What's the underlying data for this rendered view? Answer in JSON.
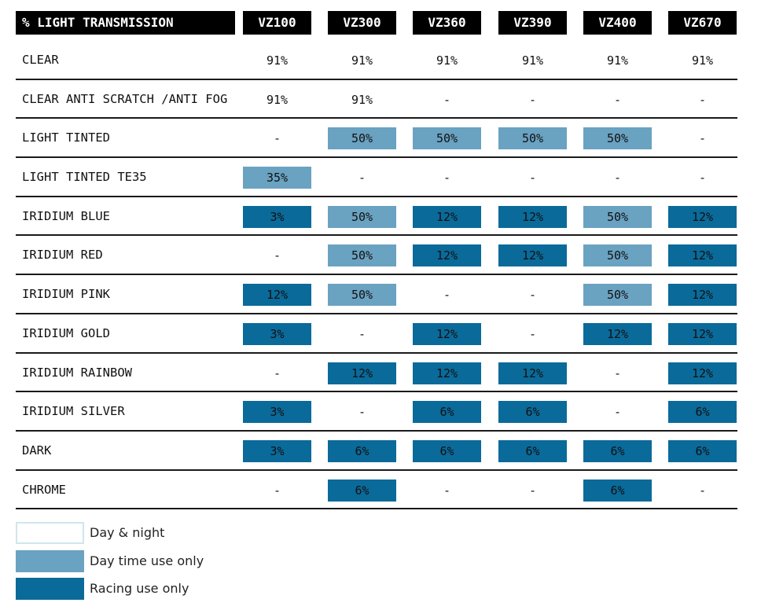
{
  "table": {
    "header_label": "% LIGHT TRANSMISSION",
    "columns": [
      "VZ100",
      "VZ300",
      "VZ360",
      "VZ390",
      "VZ400",
      "VZ670"
    ],
    "rows": [
      {
        "label": "CLEAR",
        "cells": [
          {
            "value": "91%",
            "use": "day-night"
          },
          {
            "value": "91%",
            "use": "day-night"
          },
          {
            "value": "91%",
            "use": "day-night"
          },
          {
            "value": "91%",
            "use": "day-night"
          },
          {
            "value": "91%",
            "use": "day-night"
          },
          {
            "value": "91%",
            "use": "day-night"
          }
        ]
      },
      {
        "label": "CLEAR ANTI SCRATCH /ANTI FOG",
        "cells": [
          {
            "value": "91%",
            "use": "day-night"
          },
          {
            "value": "91%",
            "use": "day-night"
          },
          {
            "value": "-",
            "use": "none"
          },
          {
            "value": "-",
            "use": "none"
          },
          {
            "value": "-",
            "use": "none"
          },
          {
            "value": "-",
            "use": "none"
          }
        ]
      },
      {
        "label": "LIGHT TINTED",
        "cells": [
          {
            "value": "-",
            "use": "none"
          },
          {
            "value": "50%",
            "use": "day"
          },
          {
            "value": "50%",
            "use": "day"
          },
          {
            "value": "50%",
            "use": "day"
          },
          {
            "value": "50%",
            "use": "day"
          },
          {
            "value": "-",
            "use": "none"
          }
        ]
      },
      {
        "label": "LIGHT TINTED TE35",
        "cells": [
          {
            "value": "35%",
            "use": "day"
          },
          {
            "value": "-",
            "use": "none"
          },
          {
            "value": "-",
            "use": "none"
          },
          {
            "value": "-",
            "use": "none"
          },
          {
            "value": "-",
            "use": "none"
          },
          {
            "value": "-",
            "use": "none"
          }
        ]
      },
      {
        "label": "IRIDIUM BLUE",
        "cells": [
          {
            "value": "3%",
            "use": "racing"
          },
          {
            "value": "50%",
            "use": "day"
          },
          {
            "value": "12%",
            "use": "racing"
          },
          {
            "value": "12%",
            "use": "racing"
          },
          {
            "value": "50%",
            "use": "day"
          },
          {
            "value": "12%",
            "use": "racing"
          }
        ]
      },
      {
        "label": "IRIDIUM RED",
        "cells": [
          {
            "value": "-",
            "use": "none"
          },
          {
            "value": "50%",
            "use": "day"
          },
          {
            "value": "12%",
            "use": "racing"
          },
          {
            "value": "12%",
            "use": "racing"
          },
          {
            "value": "50%",
            "use": "day"
          },
          {
            "value": "12%",
            "use": "racing"
          }
        ]
      },
      {
        "label": "IRIDIUM PINK",
        "cells": [
          {
            "value": "12%",
            "use": "racing"
          },
          {
            "value": "50%",
            "use": "day"
          },
          {
            "value": "-",
            "use": "none"
          },
          {
            "value": "-",
            "use": "none"
          },
          {
            "value": "50%",
            "use": "day"
          },
          {
            "value": "12%",
            "use": "racing"
          }
        ]
      },
      {
        "label": "IRIDIUM GOLD",
        "cells": [
          {
            "value": "3%",
            "use": "racing"
          },
          {
            "value": "-",
            "use": "none"
          },
          {
            "value": "12%",
            "use": "racing"
          },
          {
            "value": "-",
            "use": "none"
          },
          {
            "value": "12%",
            "use": "racing"
          },
          {
            "value": "12%",
            "use": "racing"
          }
        ]
      },
      {
        "label": "IRIDIUM RAINBOW",
        "cells": [
          {
            "value": "-",
            "use": "none"
          },
          {
            "value": "12%",
            "use": "racing"
          },
          {
            "value": "12%",
            "use": "racing"
          },
          {
            "value": "12%",
            "use": "racing"
          },
          {
            "value": "-",
            "use": "none"
          },
          {
            "value": "12%",
            "use": "racing"
          }
        ]
      },
      {
        "label": "IRIDIUM SILVER",
        "cells": [
          {
            "value": "3%",
            "use": "racing"
          },
          {
            "value": "-",
            "use": "none"
          },
          {
            "value": "6%",
            "use": "racing"
          },
          {
            "value": "6%",
            "use": "racing"
          },
          {
            "value": "-",
            "use": "none"
          },
          {
            "value": "6%",
            "use": "racing"
          }
        ]
      },
      {
        "label": "DARK",
        "cells": [
          {
            "value": "3%",
            "use": "racing"
          },
          {
            "value": "6%",
            "use": "racing"
          },
          {
            "value": "6%",
            "use": "racing"
          },
          {
            "value": "6%",
            "use": "racing"
          },
          {
            "value": "6%",
            "use": "racing"
          },
          {
            "value": "6%",
            "use": "racing"
          }
        ]
      },
      {
        "label": "CHROME",
        "cells": [
          {
            "value": "-",
            "use": "none"
          },
          {
            "value": "6%",
            "use": "racing"
          },
          {
            "value": "-",
            "use": "none"
          },
          {
            "value": "-",
            "use": "none"
          },
          {
            "value": "6%",
            "use": "racing"
          },
          {
            "value": "-",
            "use": "none"
          }
        ]
      }
    ]
  },
  "legend": [
    {
      "use": "day-night",
      "label": "Day & night"
    },
    {
      "use": "day",
      "label": "Day time use only"
    },
    {
      "use": "racing",
      "label": "Racing use only"
    }
  ],
  "colors": {
    "header_bg": "#000000",
    "day_use": "#6aa2c1",
    "racing_use": "#0a6a9a",
    "day_night_border": "#cfe6ec"
  }
}
